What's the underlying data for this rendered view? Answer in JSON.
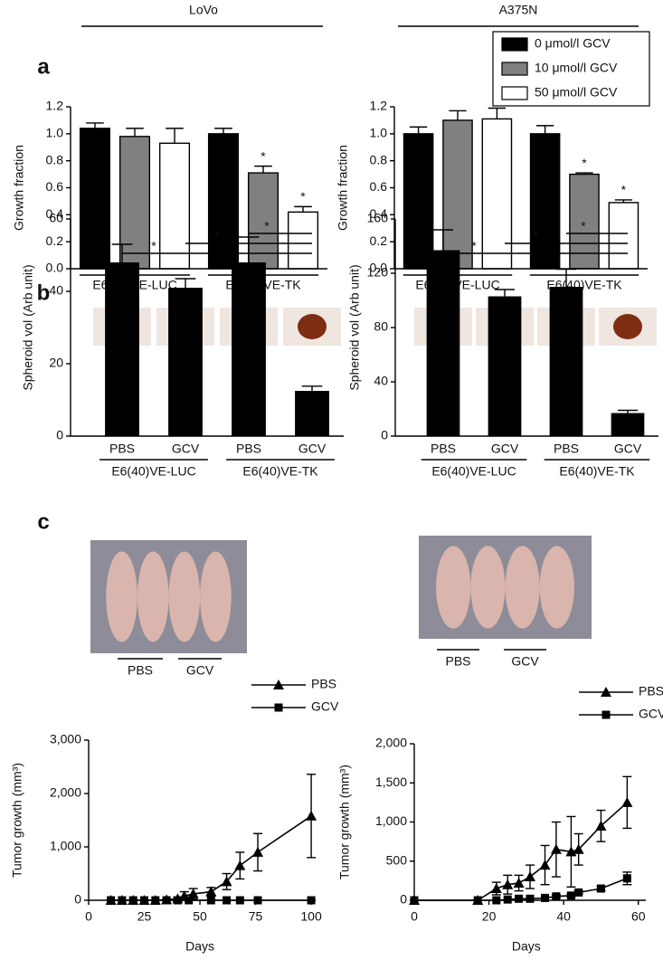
{
  "chart_data": [
    {
      "type": "bar",
      "panel": "a",
      "title": "LoVo",
      "ylabel": "Growth fraction",
      "categories": [
        "E6(40)VE-LUC",
        "E6(40)VE-TK"
      ],
      "series": [
        {
          "color": "#000000",
          "values": [
            1.04,
            1.0
          ],
          "errors": [
            0.04,
            0.04
          ]
        },
        {
          "color": "#808080",
          "values": [
            0.98,
            0.71
          ],
          "errors": [
            0.06,
            0.05
          ]
        },
        {
          "color": "#ffffff",
          "values": [
            0.93,
            0.42
          ],
          "errors": [
            0.11,
            0.04
          ]
        }
      ],
      "markers": [
        {
          "series": 1,
          "category": 1,
          "label": "*"
        },
        {
          "series": 2,
          "category": 1,
          "label": "*"
        }
      ],
      "ylim": [
        0,
        1.2
      ],
      "yticks": [
        {
          "value": 0,
          "label": "0.0"
        },
        0.2,
        0.4,
        0.6,
        0.8,
        {
          "value": 1,
          "label": "1.0"
        },
        1.2
      ]
    },
    {
      "type": "bar",
      "title": "A375N",
      "ylabel": "Growth fraction",
      "categories": [
        "E6(40)VE-LUC",
        "E6(40)VE-TK"
      ],
      "series": [
        {
          "name": "0 μmol/l GCV",
          "color": "#000000",
          "values": [
            1.0,
            1.0
          ],
          "errors": [
            0.05,
            0.06
          ]
        },
        {
          "name": "10 μmol/l GCV",
          "color": "#808080",
          "values": [
            1.1,
            0.7
          ],
          "errors": [
            0.07,
            0.01
          ]
        },
        {
          "name": "50 μmol/l GCV",
          "color": "#ffffff",
          "values": [
            1.11,
            0.49
          ],
          "errors": [
            0.08,
            0.02
          ]
        }
      ],
      "markers": [
        {
          "series": 1,
          "category": 1,
          "label": "*"
        },
        {
          "series": 2,
          "category": 1,
          "label": "*"
        }
      ],
      "legend": "upper right",
      "ylim": [
        0,
        1.2
      ],
      "yticks": [
        {
          "value": 0,
          "label": "0.0"
        },
        0.2,
        0.4,
        0.6,
        0.8,
        {
          "value": 1,
          "label": "1.0"
        },
        1.2
      ]
    },
    {
      "type": "bar",
      "panel": "b",
      "ylabel": "Spheroid vol (Arb unit)",
      "categories": [
        "PBS",
        "GCV",
        "PBS",
        "GCV"
      ],
      "groups": [
        "E6(40)VE-LUC",
        "E6(40)VE-TK"
      ],
      "values": [
        48,
        41,
        48,
        12.5
      ],
      "errors": [
        5,
        2.5,
        7,
        1.3
      ],
      "color": "#000000",
      "brackets": [
        {
          "from": 0,
          "to": 3,
          "label": "*"
        },
        {
          "from": 1,
          "to": 3,
          "label": "*"
        },
        {
          "from": 2,
          "to": 3,
          "label": "*"
        }
      ],
      "ylim": [
        0,
        60
      ],
      "yticks": [
        0,
        20,
        40,
        60
      ]
    },
    {
      "type": "bar",
      "ylabel": "Spheroid vol (Arb unit)",
      "categories": [
        "PBS",
        "GCV",
        "PBS",
        "GCV"
      ],
      "groups": [
        "E6(40)VE-LUC",
        "E6(40)VE-TK"
      ],
      "values": [
        137,
        103,
        110,
        17
      ],
      "errors": [
        15,
        5,
        13,
        2
      ],
      "color": "#000000",
      "brackets": [
        {
          "from": 0,
          "to": 3,
          "label": "*"
        },
        {
          "from": 1,
          "to": 3,
          "label": "*"
        },
        {
          "from": 2,
          "to": 3,
          "label": "*"
        }
      ],
      "ylim": [
        0,
        160
      ],
      "yticks": [
        0,
        40,
        80,
        120,
        160
      ]
    },
    {
      "type": "line",
      "panel": "c",
      "xlabel": "Days",
      "ylabel": "Tumor growth (mm³)",
      "photo_labels": [
        "PBS",
        "GCV"
      ],
      "series": [
        {
          "name": "PBS",
          "marker": "triangle",
          "color": "#000000",
          "x": [
            10,
            15,
            20,
            25,
            30,
            35,
            40,
            43,
            47,
            55,
            62,
            68,
            76,
            100
          ],
          "values": [
            0,
            0,
            0,
            0,
            0,
            10,
            30,
            80,
            120,
            160,
            350,
            650,
            900,
            1580
          ],
          "errors": [
            0,
            0,
            0,
            0,
            0,
            10,
            30,
            80,
            100,
            80,
            150,
            250,
            350,
            780
          ]
        },
        {
          "name": "GCV",
          "marker": "square",
          "color": "#000000",
          "x": [
            10,
            15,
            20,
            25,
            30,
            35,
            40,
            45,
            55,
            62,
            68,
            76,
            100
          ],
          "values": [
            0,
            0,
            0,
            0,
            0,
            0,
            0,
            0,
            0,
            0,
            0,
            0,
            0
          ]
        }
      ],
      "legend": "upper right",
      "xlim": [
        0,
        102
      ],
      "xticks": [
        0,
        25,
        50,
        75,
        100
      ],
      "ylim": [
        0,
        3000
      ],
      "yticks": [
        0,
        {
          "value": 1000,
          "label": "1,000"
        },
        {
          "value": 2000,
          "label": "2,000"
        },
        {
          "value": 3000,
          "label": "3,000"
        }
      ]
    },
    {
      "type": "line",
      "xlabel": "Days",
      "ylabel": "Tumor growth (mm³)",
      "photo_labels": [
        "PBS",
        "GCV"
      ],
      "series": [
        {
          "name": "PBS",
          "marker": "triangle",
          "color": "#000000",
          "x": [
            0,
            17,
            22,
            25,
            28,
            31,
            35,
            38,
            42,
            44,
            50,
            57
          ],
          "values": [
            0,
            0,
            150,
            200,
            220,
            300,
            450,
            650,
            620,
            650,
            950,
            1250
          ],
          "errors": [
            0,
            0,
            80,
            120,
            100,
            150,
            250,
            350,
            450,
            200,
            200,
            330
          ]
        },
        {
          "name": "GCV",
          "marker": "square",
          "color": "#000000",
          "x": [
            0,
            17,
            22,
            25,
            28,
            31,
            35,
            38,
            42,
            44,
            50,
            57
          ],
          "values": [
            0,
            0,
            0,
            10,
            20,
            20,
            30,
            50,
            60,
            100,
            150,
            280
          ],
          "errors": [
            0,
            0,
            0,
            0,
            0,
            0,
            0,
            20,
            20,
            20,
            30,
            80
          ]
        }
      ],
      "legend": "upper right",
      "xlim": [
        0,
        62
      ],
      "xticks": [
        0,
        20,
        40,
        60
      ],
      "ylim": [
        0,
        2000
      ],
      "yticks": [
        0,
        500,
        {
          "value": 1000,
          "label": "1,000"
        },
        {
          "value": 1500,
          "label": "1,500"
        },
        {
          "value": 2000,
          "label": "2,000"
        }
      ]
    }
  ]
}
